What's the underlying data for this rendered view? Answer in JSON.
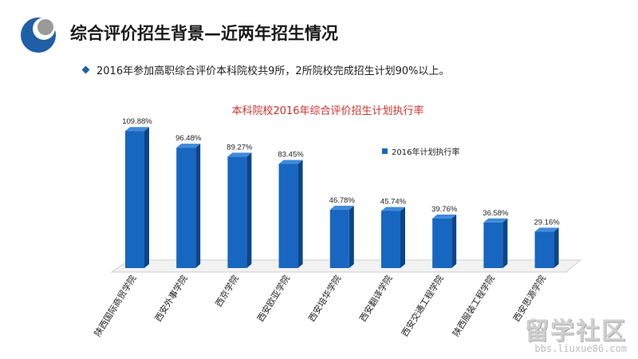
{
  "header": {
    "title": "综合评价招生背景—近两年招生情况",
    "bullet": "2016年参加高职综合评价本科院校共9所，2所院校完成招生计划90%以上。"
  },
  "watermark": {
    "brand": "留学社区",
    "url": "bbs.liuxue86.com"
  },
  "colors": {
    "bar": "#1767c0",
    "bar_side": "#0c4587",
    "bar_top": "#3f8ad9",
    "title": "#d0312d",
    "accent": "#1f5fa8"
  },
  "chart_data": {
    "type": "bar",
    "title": "本科院校2016年综合评价招生计划执行率",
    "categories": [
      "陕西国际商贸学院",
      "西安外事学院",
      "西京学院",
      "西安欧亚学院",
      "西安培华学院",
      "西安翻译学院",
      "西安交通工程学院",
      "陕西服装工程学院",
      "西安思源学院"
    ],
    "series": [
      {
        "name": "2016年计划执行率",
        "values": [
          109.88,
          96.48,
          89.27,
          83.45,
          46.78,
          45.74,
          39.76,
          36.58,
          29.16
        ],
        "labels": [
          "109.88%",
          "96.48%",
          "89.27%",
          "83.45%",
          "46.78%",
          "45.74%",
          "39.76%",
          "36.58%",
          "29.16%"
        ]
      }
    ],
    "xlabel": "",
    "ylabel": "",
    "ylim": [
      0,
      110
    ],
    "grid": false,
    "legend": "top-right"
  }
}
